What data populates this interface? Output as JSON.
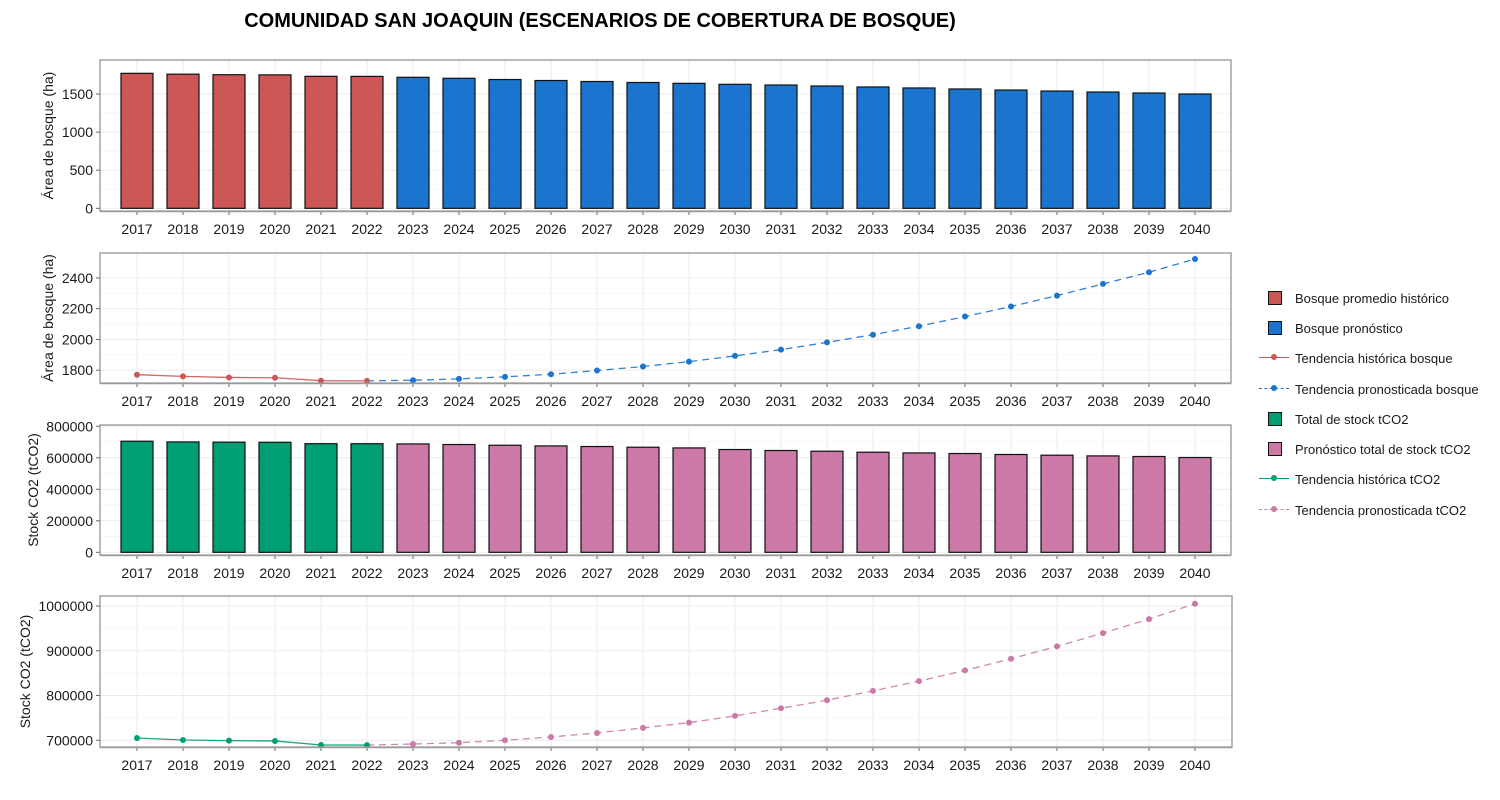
{
  "title": "COMUNIDAD SAN JOAQUIN (ESCENARIOS DE COBERTURA DE BOSQUE)",
  "colors": {
    "hist_forest": "#CD5656",
    "fc_forest": "#1B74CD",
    "hist_co2": "#009E73",
    "fc_co2": "#CC79A7"
  },
  "legend": [
    {
      "label": "Bosque promedio histórico",
      "kind": "box",
      "color": "#CD5656"
    },
    {
      "label": "Bosque pronóstico",
      "kind": "box",
      "color": "#1B74CD"
    },
    {
      "label": "Tendencia histórica bosque",
      "kind": "line",
      "color": "#CD5656"
    },
    {
      "label": "Tendencia pronosticada bosque",
      "kind": "dashed",
      "color": "#1B74CD"
    },
    {
      "label": "Total de stock tCO2",
      "kind": "box",
      "color": "#009E73"
    },
    {
      "label": "Pronóstico total de stock tCO2",
      "kind": "box",
      "color": "#CC79A7"
    },
    {
      "label": "Tendencia histórica tCO2",
      "kind": "line",
      "color": "#009E73"
    },
    {
      "label": "Tendencia pronosticada tCO2",
      "kind": "dashed",
      "color": "#CC79A7"
    }
  ],
  "chart_data": [
    {
      "type": "bar",
      "title": "",
      "xlabel": "",
      "ylabel": "Área de bosque (ha)",
      "categories": [
        "2017",
        "2018",
        "2019",
        "2020",
        "2021",
        "2022",
        "2023",
        "2024",
        "2025",
        "2026",
        "2027",
        "2028",
        "2029",
        "2030",
        "2031",
        "2032",
        "2033",
        "2034",
        "2035",
        "2036",
        "2037",
        "2038",
        "2039",
        "2040"
      ],
      "yticks": [
        0,
        500,
        1000,
        1500
      ],
      "ylim": [
        -35,
        1946
      ],
      "grid": true,
      "series": [
        {
          "name": "Bosque promedio histórico",
          "color": "#CD5656",
          "from": 0,
          "values": [
            1771,
            1760,
            1753,
            1751,
            1732,
            1731
          ]
        },
        {
          "name": "Bosque pronóstico",
          "color": "#1B74CD",
          "from": 6,
          "values": [
            1719,
            1706,
            1690,
            1677,
            1664,
            1651,
            1640,
            1627,
            1618,
            1605,
            1592,
            1579,
            1566,
            1552,
            1539,
            1526,
            1513,
            1500
          ]
        }
      ]
    },
    {
      "type": "line",
      "title": "",
      "xlabel": "",
      "ylabel": "Área de bosque (ha)",
      "categories": [
        "2017",
        "2018",
        "2019",
        "2020",
        "2021",
        "2022",
        "2023",
        "2024",
        "2025",
        "2026",
        "2027",
        "2028",
        "2029",
        "2030",
        "2031",
        "2032",
        "2033",
        "2034",
        "2035",
        "2036",
        "2037",
        "2038",
        "2039",
        "2040"
      ],
      "yticks": [
        1800,
        2000,
        2200,
        2400
      ],
      "ylim": [
        1717,
        2562
      ],
      "grid": true,
      "series": [
        {
          "name": "Tendencia histórica bosque",
          "color": "#CD5656",
          "dashed": false,
          "from": 0,
          "values": [
            1771,
            1760,
            1753,
            1751,
            1732,
            1731
          ]
        },
        {
          "name": "Tendencia pronosticada bosque",
          "color": "#1B74CD",
          "dashed": true,
          "from": 5,
          "values": [
            1731,
            1735,
            1744,
            1757,
            1774,
            1798,
            1824,
            1856,
            1893,
            1934,
            1981,
            2031,
            2086,
            2149,
            2214,
            2285,
            2361,
            2437,
            2523
          ]
        }
      ]
    },
    {
      "type": "bar",
      "title": "",
      "xlabel": "",
      "ylabel": "Stock CO2 (tCO2)",
      "categories": [
        "2017",
        "2018",
        "2019",
        "2020",
        "2021",
        "2022",
        "2023",
        "2024",
        "2025",
        "2026",
        "2027",
        "2028",
        "2029",
        "2030",
        "2031",
        "2032",
        "2033",
        "2034",
        "2035",
        "2036",
        "2037",
        "2038",
        "2039",
        "2040"
      ],
      "yticks": [
        0,
        200000,
        400000,
        600000,
        800000
      ],
      "ylim": [
        -17000,
        808000
      ],
      "grid": true,
      "series": [
        {
          "name": "Total de stock tCO2",
          "color": "#009E73",
          "from": 0,
          "values": [
            705100,
            700700,
            699200,
            698500,
            689500,
            689300
          ]
        },
        {
          "name": "Pronóstico total de stock tCO2",
          "color": "#CC79A7",
          "from": 6,
          "values": [
            687900,
            684100,
            679600,
            675200,
            671400,
            667000,
            662500,
            652400,
            646100,
            641600,
            635300,
            630800,
            627100,
            620800,
            616300,
            611900,
            608100,
            601700
          ]
        }
      ]
    },
    {
      "type": "line",
      "title": "",
      "xlabel": "",
      "ylabel": "Stock CO2 (tCO2)",
      "categories": [
        "2017",
        "2018",
        "2019",
        "2020",
        "2021",
        "2022",
        "2023",
        "2024",
        "2025",
        "2026",
        "2027",
        "2028",
        "2029",
        "2030",
        "2031",
        "2032",
        "2033",
        "2034",
        "2035",
        "2036",
        "2037",
        "2038",
        "2039",
        "2040"
      ],
      "yticks": [
        700000,
        800000,
        900000,
        1000000
      ],
      "ylim": [
        685000,
        1022300
      ],
      "grid": true,
      "series": [
        {
          "name": "Tendencia histórica tCO2",
          "color": "#009E73",
          "dashed": false,
          "from": 0,
          "values": [
            705100,
            700700,
            699200,
            698500,
            689500,
            689300
          ]
        },
        {
          "name": "Tendencia pronosticada tCO2",
          "color": "#CC79A7",
          "dashed": true,
          "from": 5,
          "values": [
            689300,
            691700,
            694600,
            700000,
            707400,
            716400,
            727600,
            739500,
            754400,
            771600,
            789500,
            810300,
            832200,
            856100,
            882100,
            909700,
            939500,
            970700,
            1005000
          ]
        }
      ]
    }
  ]
}
